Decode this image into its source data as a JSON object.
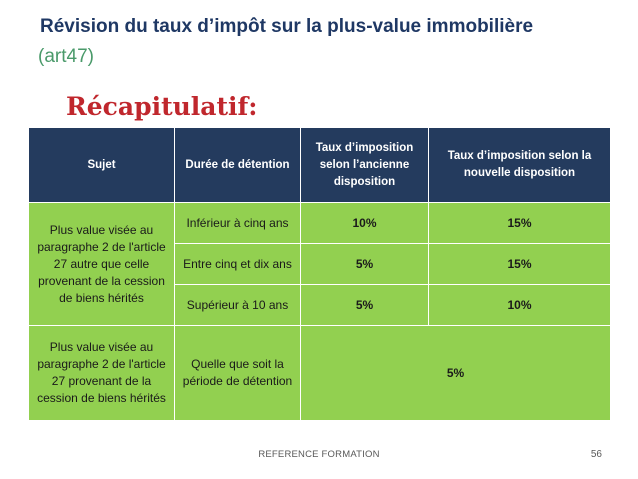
{
  "slide": {
    "title": "Révision du taux d’impôt sur la plus-value immobilière",
    "subtitle": "(art47)",
    "heading": "Récapitulatif:"
  },
  "table": {
    "headers": {
      "subject": "Sujet",
      "duration": "Durée de détention",
      "old_rate": "Taux d’imposition selon l’ancienne disposition",
      "new_rate": "Taux d’imposition selon la nouvelle disposition"
    },
    "group1": {
      "subject": "Plus value visée au paragraphe 2 de l'article 27 autre que celle provenant de la cession de biens hérités",
      "rows": [
        {
          "duration": "Inférieur à cinq ans",
          "old": "10%",
          "new": "15%"
        },
        {
          "duration": "Entre cinq et dix ans",
          "old": "5%",
          "new": "15%"
        },
        {
          "duration": "Supérieur à 10 ans",
          "old": "5%",
          "new": "10%"
        }
      ]
    },
    "group2": {
      "subject": "Plus value visée au paragraphe 2 de l'article 27 provenant de la cession de biens hérités",
      "duration": "Quelle que soit la période de détention",
      "rate": "5%"
    }
  },
  "footer": {
    "text": "REFERENCE FORMATION",
    "page": "56"
  }
}
